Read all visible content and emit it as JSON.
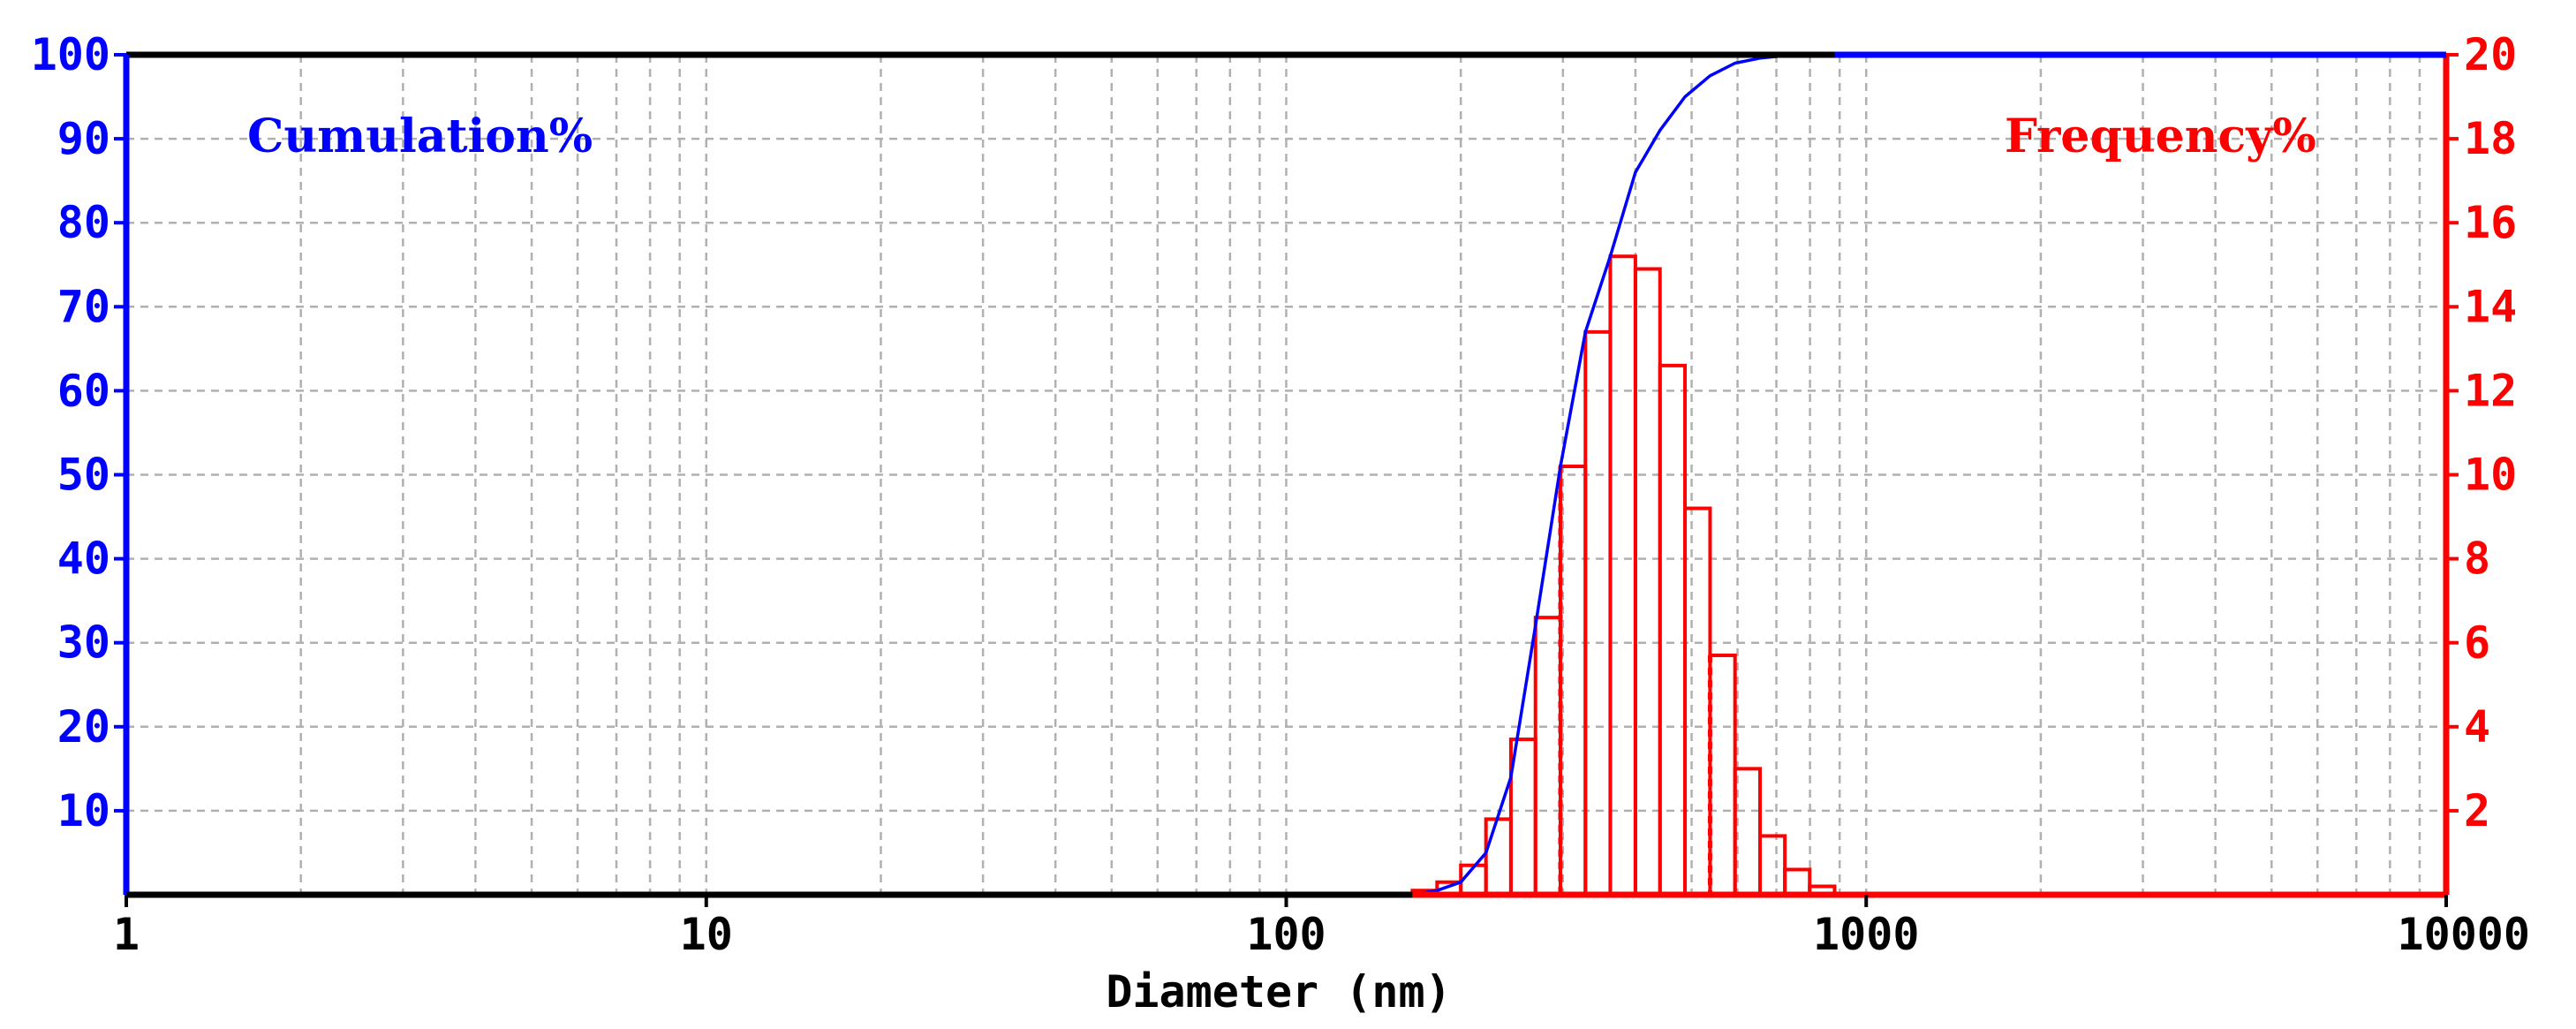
{
  "chart_data": {
    "type": "bar",
    "xlabel": "Diameter (nm)",
    "x_scale": "log",
    "xlim": [
      1,
      10000
    ],
    "x_ticks": [
      "1",
      "10",
      "100",
      "1000",
      "10000"
    ],
    "left_axis": {
      "label": "Cumulation%",
      "ylim": [
        0,
        100
      ],
      "ticks": [
        "10",
        "20",
        "30",
        "40",
        "50",
        "60",
        "70",
        "80",
        "90",
        "100"
      ]
    },
    "right_axis": {
      "label": "Frequency%",
      "ylim": [
        0,
        20
      ],
      "ticks": [
        "2",
        "4",
        "6",
        "8",
        "10",
        "12",
        "14",
        "16",
        "18",
        "20"
      ]
    },
    "grid": true,
    "series": [
      {
        "name": "Frequency%",
        "type": "bar",
        "axis": "right",
        "bins": [
          {
            "from": 165,
            "to": 182,
            "value": 0.1
          },
          {
            "from": 182,
            "to": 200,
            "value": 0.3
          },
          {
            "from": 200,
            "to": 221,
            "value": 0.7
          },
          {
            "from": 221,
            "to": 244,
            "value": 1.8
          },
          {
            "from": 244,
            "to": 269,
            "value": 3.7
          },
          {
            "from": 269,
            "to": 297,
            "value": 6.6
          },
          {
            "from": 297,
            "to": 328,
            "value": 10.2
          },
          {
            "from": 328,
            "to": 362,
            "value": 13.4
          },
          {
            "from": 362,
            "to": 400,
            "value": 15.2
          },
          {
            "from": 400,
            "to": 441,
            "value": 14.9
          },
          {
            "from": 441,
            "to": 487,
            "value": 12.6
          },
          {
            "from": 487,
            "to": 538,
            "value": 9.2
          },
          {
            "from": 538,
            "to": 594,
            "value": 5.7
          },
          {
            "from": 594,
            "to": 656,
            "value": 3.0
          },
          {
            "from": 656,
            "to": 724,
            "value": 1.4
          },
          {
            "from": 724,
            "to": 799,
            "value": 0.6
          },
          {
            "from": 799,
            "to": 882,
            "value": 0.2
          }
        ]
      },
      {
        "name": "Cumulation%",
        "type": "line",
        "axis": "left",
        "x": [
          1,
          165,
          182,
          200,
          221,
          244,
          269,
          297,
          328,
          362,
          400,
          441,
          487,
          538,
          594,
          656,
          724,
          799,
          882,
          10000
        ],
        "y": [
          0,
          0,
          0.5,
          1.5,
          5,
          14,
          32,
          51,
          67,
          76,
          86,
          91,
          95,
          97.5,
          99,
          99.6,
          99.9,
          100,
          100,
          100
        ]
      }
    ],
    "dashed_bin_edges": [
      297,
      538
    ]
  },
  "colors": {
    "left_axis": "#0000ff",
    "right_axis": "#ff0000",
    "grid": "#b0b0b0",
    "cumulative_line": "#0000ff",
    "bars": "#ff0000"
  }
}
